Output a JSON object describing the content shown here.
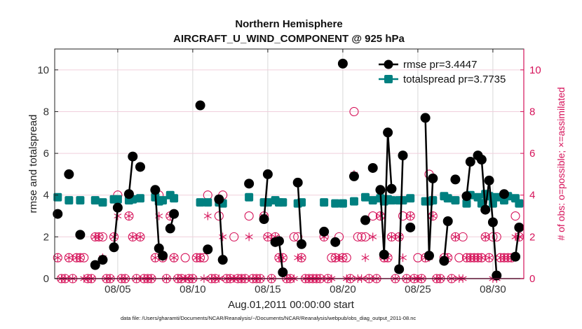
{
  "chart_data": {
    "type": "line",
    "title": "Northern Hemisphere",
    "subtitle": "AIRCRAFT_U_WIND_COMPONENT @ 925 hPa",
    "xlabel": "Aug.01,2011 00:00:00 start",
    "ylabel": "rmse and totalspread",
    "ylabel_right": "# of obs: o=possible; ×=assimilated",
    "footer": "data file: /Users/gharamti/Documents/NCAR/Reanalysis/~/Documents/NCAR/Reanalysis/webpub/obs_diag_output_2011-08.nc",
    "x_unit": "days since Aug.01,2011 00:00",
    "xlim": [
      -0.2,
      31.06
    ],
    "ylim": [
      0,
      11
    ],
    "ylim_right": [
      0,
      11
    ],
    "xticks": [
      {
        "day": 4,
        "label": "08/05"
      },
      {
        "day": 9,
        "label": "08/10"
      },
      {
        "day": 14,
        "label": "08/15"
      },
      {
        "day": 19,
        "label": "08/20"
      },
      {
        "day": 24,
        "label": "08/25"
      },
      {
        "day": 29,
        "label": "08/30"
      }
    ],
    "yticks": [
      "0",
      "2",
      "4",
      "6",
      "8",
      "10"
    ],
    "yticks_right": [
      "0",
      "2",
      "4",
      "6",
      "8",
      "10"
    ],
    "grid": true,
    "legend_position": "top-right",
    "colors": {
      "rmse": "#000000",
      "totalspread": "#008080",
      "obs": "#d6135a"
    },
    "series": [
      {
        "name": "rmse",
        "legend": "rmse pr=3.4447",
        "marker": "circle",
        "points": [
          [
            0,
            3.1
          ],
          [
            0.75,
            5.0
          ],
          [
            1.5,
            2.1
          ],
          [
            2.5,
            0.65
          ],
          [
            3.0,
            0.9
          ],
          [
            3.75,
            1.5
          ],
          [
            4.0,
            3.4
          ],
          [
            4.75,
            4.05
          ],
          [
            5.0,
            5.85
          ],
          [
            5.5,
            5.35
          ],
          [
            6.5,
            4.25
          ],
          [
            6.75,
            1.45
          ],
          [
            7.0,
            1.1
          ],
          [
            7.5,
            2.4
          ],
          [
            7.75,
            3.1
          ],
          [
            9.5,
            8.3
          ],
          [
            10.0,
            1.4
          ],
          [
            10.75,
            3.8
          ],
          [
            11.0,
            0.9
          ],
          [
            12.75,
            4.55
          ],
          [
            13.75,
            2.85
          ],
          [
            14.0,
            5.0
          ],
          [
            14.5,
            1.75
          ],
          [
            14.75,
            1.8
          ],
          [
            15.0,
            0.3
          ],
          [
            16.0,
            4.6
          ],
          [
            16.25,
            1.65
          ],
          [
            17.75,
            2.25
          ],
          [
            18.5,
            1.75
          ],
          [
            19.0,
            10.3
          ],
          [
            19.75,
            4.9
          ],
          [
            20.5,
            2.8
          ],
          [
            21.0,
            5.3
          ],
          [
            21.5,
            4.25
          ],
          [
            21.75,
            1.15
          ],
          [
            22.0,
            7.0
          ],
          [
            22.25,
            4.3
          ],
          [
            22.75,
            0.45
          ],
          [
            23.0,
            5.9
          ],
          [
            23.5,
            2.45
          ],
          [
            24.5,
            7.7
          ],
          [
            24.75,
            1.1
          ],
          [
            25.0,
            4.8
          ],
          [
            25.75,
            0.85
          ],
          [
            26.0,
            2.75
          ],
          [
            26.5,
            4.75
          ],
          [
            27.25,
            3.95
          ],
          [
            27.5,
            5.6
          ],
          [
            28.0,
            5.9
          ],
          [
            28.25,
            5.7
          ],
          [
            28.5,
            3.3
          ],
          [
            28.75,
            4.7
          ],
          [
            29.0,
            2.7
          ],
          [
            29.25,
            0.15
          ],
          [
            29.75,
            4.05
          ],
          [
            30.5,
            1.05
          ],
          [
            30.75,
            2.45
          ]
        ]
      },
      {
        "name": "totalspread",
        "legend": "totalspread pr=3.7735",
        "marker": "square",
        "points": [
          [
            0,
            3.9
          ],
          [
            0.75,
            3.75
          ],
          [
            1.5,
            3.75
          ],
          [
            2.5,
            3.75
          ],
          [
            3.0,
            3.65
          ],
          [
            3.75,
            3.8
          ],
          [
            4.0,
            3.8
          ],
          [
            4.75,
            3.75
          ],
          [
            5.0,
            3.8
          ],
          [
            5.5,
            3.85
          ],
          [
            6.5,
            3.9
          ],
          [
            6.75,
            3.7
          ],
          [
            7.0,
            3.75
          ],
          [
            7.5,
            4.0
          ],
          [
            7.75,
            3.85
          ],
          [
            9.5,
            3.65
          ],
          [
            10.0,
            3.65
          ],
          [
            10.75,
            3.65
          ],
          [
            11.0,
            3.6
          ],
          [
            12.75,
            3.9
          ],
          [
            13.75,
            3.65
          ],
          [
            14.0,
            3.65
          ],
          [
            14.5,
            3.75
          ],
          [
            14.75,
            3.65
          ],
          [
            15.0,
            3.65
          ],
          [
            16.0,
            3.6
          ],
          [
            16.25,
            3.65
          ],
          [
            17.75,
            3.65
          ],
          [
            18.5,
            3.6
          ],
          [
            19.0,
            3.6
          ],
          [
            19.75,
            3.7
          ],
          [
            20.5,
            3.9
          ],
          [
            21.0,
            3.75
          ],
          [
            21.5,
            3.85
          ],
          [
            21.75,
            3.7
          ],
          [
            22.0,
            3.8
          ],
          [
            22.25,
            3.75
          ],
          [
            22.75,
            3.75
          ],
          [
            23.0,
            3.75
          ],
          [
            23.5,
            3.85
          ],
          [
            24.5,
            3.7
          ],
          [
            24.75,
            3.7
          ],
          [
            25.0,
            3.75
          ],
          [
            25.75,
            3.95
          ],
          [
            26.0,
            3.85
          ],
          [
            26.5,
            3.75
          ],
          [
            27.25,
            3.6
          ],
          [
            27.5,
            4.0
          ],
          [
            28.0,
            3.9
          ],
          [
            28.25,
            3.6
          ],
          [
            28.5,
            4.05
          ],
          [
            28.75,
            3.95
          ],
          [
            29.0,
            3.6
          ],
          [
            29.25,
            3.9
          ],
          [
            29.75,
            3.75
          ],
          [
            30.0,
            3.95
          ],
          [
            30.5,
            3.85
          ],
          [
            30.75,
            3.6
          ]
        ]
      }
    ],
    "obs_step_days": 0.25,
    "obs_default": [
      0,
      0
    ],
    "obs_fields": [
      "day",
      "possible",
      "assimilated"
    ],
    "obs": [
      [
        0,
        1,
        1
      ],
      [
        0.75,
        1,
        1
      ],
      [
        1.25,
        1,
        1
      ],
      [
        1.5,
        1,
        1
      ],
      [
        1.75,
        1,
        0
      ],
      [
        2.5,
        2,
        2
      ],
      [
        2.75,
        2,
        2
      ],
      [
        3.0,
        2,
        1
      ],
      [
        3.75,
        2,
        2
      ],
      [
        4.0,
        4,
        3
      ],
      [
        4.75,
        3,
        3
      ],
      [
        5.0,
        2,
        2
      ],
      [
        5.5,
        2,
        2
      ],
      [
        6.5,
        1,
        1
      ],
      [
        6.75,
        4,
        3
      ],
      [
        7.0,
        1,
        1
      ],
      [
        7.5,
        3,
        3
      ],
      [
        7.75,
        1,
        1
      ],
      [
        8.5,
        1,
        0
      ],
      [
        9.25,
        1,
        1
      ],
      [
        9.5,
        1,
        1
      ],
      [
        9.75,
        1,
        0
      ],
      [
        10.0,
        4,
        3
      ],
      [
        10.75,
        3,
        0
      ],
      [
        11.0,
        4,
        2
      ],
      [
        11.75,
        2,
        0
      ],
      [
        12.75,
        3,
        2
      ],
      [
        13.75,
        3,
        3
      ],
      [
        14.0,
        2,
        2
      ],
      [
        14.5,
        2,
        2
      ],
      [
        14.75,
        1,
        1
      ],
      [
        15.0,
        1,
        1
      ],
      [
        15.75,
        2,
        0
      ],
      [
        16.0,
        2,
        1
      ],
      [
        16.25,
        1,
        1
      ],
      [
        17.75,
        2,
        2
      ],
      [
        18.25,
        1,
        0
      ],
      [
        18.5,
        1,
        1
      ],
      [
        18.75,
        2,
        1
      ],
      [
        19.0,
        1,
        1
      ],
      [
        19.25,
        1,
        0
      ],
      [
        19.75,
        8,
        5
      ],
      [
        20.0,
        2,
        0
      ],
      [
        20.25,
        2,
        0
      ],
      [
        20.5,
        2,
        1
      ],
      [
        21.0,
        3,
        2
      ],
      [
        21.5,
        3,
        3
      ],
      [
        21.75,
        1,
        1
      ],
      [
        22.0,
        1,
        1
      ],
      [
        22.25,
        2,
        2
      ],
      [
        22.75,
        2,
        2
      ],
      [
        23.0,
        3,
        1
      ],
      [
        23.5,
        3,
        3
      ],
      [
        24.0,
        1,
        0
      ],
      [
        24.5,
        1,
        1
      ],
      [
        24.75,
        5,
        1
      ],
      [
        25.0,
        3,
        3
      ],
      [
        25.75,
        1,
        1
      ],
      [
        26.0,
        1,
        1
      ],
      [
        26.5,
        2,
        2
      ],
      [
        26.75,
        1,
        0
      ],
      [
        27.0,
        2,
        0
      ],
      [
        27.25,
        1,
        1
      ],
      [
        27.5,
        1,
        1
      ],
      [
        27.75,
        1,
        1
      ],
      [
        28.0,
        1,
        1
      ],
      [
        28.25,
        1,
        1
      ],
      [
        28.5,
        2,
        2
      ],
      [
        28.75,
        1,
        1
      ],
      [
        29.0,
        2,
        0
      ],
      [
        29.25,
        2,
        0
      ],
      [
        29.5,
        1,
        1
      ],
      [
        29.75,
        1,
        1
      ],
      [
        30.0,
        1,
        1
      ],
      [
        30.25,
        1,
        1
      ],
      [
        30.5,
        3,
        2
      ],
      [
        30.75,
        2,
        2
      ]
    ]
  }
}
